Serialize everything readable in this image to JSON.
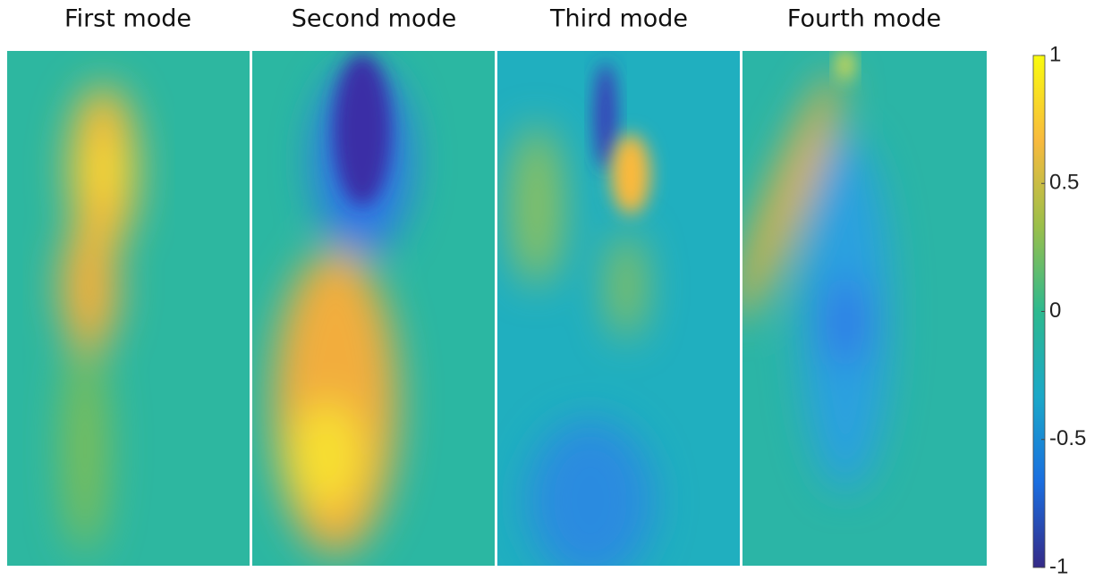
{
  "chart_data": {
    "type": "heatmap",
    "panels": [
      {
        "title": "First mode"
      },
      {
        "title": "Second mode"
      },
      {
        "title": "Third mode"
      },
      {
        "title": "Fourth mode"
      }
    ],
    "colorbar": {
      "lim": [
        -1,
        1
      ],
      "ticks": [
        -1,
        -0.5,
        0,
        0.5,
        1
      ],
      "colors": [
        "#352a87",
        "#1a6ee0",
        "#1ba8c8",
        "#2db98f",
        "#9bbf4a",
        "#f8ba3e",
        "#f9fb0e"
      ]
    }
  }
}
